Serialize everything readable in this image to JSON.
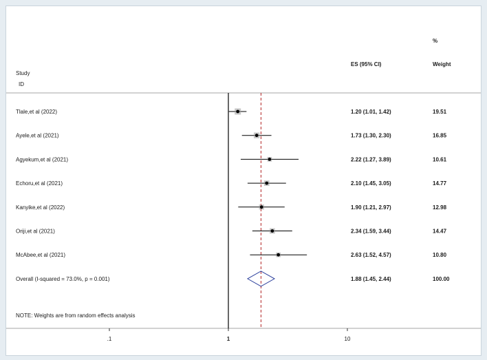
{
  "chart_data": {
    "type": "forest",
    "headers": {
      "study": "Study",
      "id": "ID",
      "es": "ES (95% CI)",
      "weight_pct": "%",
      "weight": "Weight"
    },
    "studies": [
      {
        "label": "Tlale,et al (2022)",
        "es": 1.2,
        "lo": 1.01,
        "hi": 1.42,
        "es_text": "1.20 (1.01, 1.42)",
        "weight": 19.51,
        "weight_text": "19.51"
      },
      {
        "label": "Ayele,et al (2021)",
        "es": 1.73,
        "lo": 1.3,
        "hi": 2.3,
        "es_text": "1.73 (1.30, 2.30)",
        "weight": 16.85,
        "weight_text": "16.85"
      },
      {
        "label": "Agyekum,et al (2021)",
        "es": 2.22,
        "lo": 1.27,
        "hi": 3.89,
        "es_text": "2.22 (1.27, 3.89)",
        "weight": 10.61,
        "weight_text": "10.61"
      },
      {
        "label": "Echoru,et al (2021)",
        "es": 2.1,
        "lo": 1.45,
        "hi": 3.05,
        "es_text": "2.10 (1.45, 3.05)",
        "weight": 14.77,
        "weight_text": "14.77"
      },
      {
        "label": "Kanyike,et al (2022)",
        "es": 1.9,
        "lo": 1.21,
        "hi": 2.97,
        "es_text": "1.90 (1.21, 2.97)",
        "weight": 12.98,
        "weight_text": "12.98"
      },
      {
        "label": "Oriji,et al (2021)",
        "es": 2.34,
        "lo": 1.59,
        "hi": 3.44,
        "es_text": "2.34 (1.59, 3.44)",
        "weight": 14.47,
        "weight_text": "14.47"
      },
      {
        "label": "McAbee,et al (2021)",
        "es": 2.63,
        "lo": 1.52,
        "hi": 4.57,
        "es_text": "2.63 (1.52, 4.57)",
        "weight": 10.8,
        "weight_text": "10.80"
      }
    ],
    "overall": {
      "label": "Overall  (I-squared = 73.0%, p = 0.001)",
      "es": 1.88,
      "lo": 1.45,
      "hi": 2.44,
      "es_text": "1.88 (1.45, 2.44)",
      "weight_text": "100.00"
    },
    "note": "NOTE: Weights are from random effects analysis",
    "x_axis": {
      "scale": "log",
      "ticks": [
        0.1,
        1,
        10
      ],
      "tick_labels": [
        ".1",
        "1",
        "10"
      ]
    },
    "null_line": 1,
    "colors": {
      "axis": "#000000",
      "overall_line": "#b22222",
      "diamond": "#2b3f9c",
      "marker": "#000000",
      "weight_box": "#999999"
    }
  }
}
